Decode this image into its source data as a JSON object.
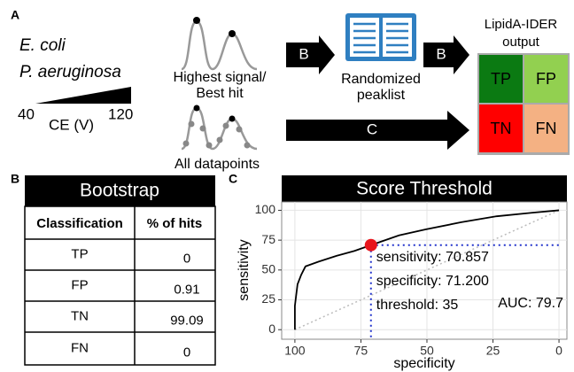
{
  "panel_a": {
    "label": "A",
    "organisms": [
      "E. coli",
      "P. aeruginosa"
    ],
    "ce": {
      "min": 40,
      "label": "CE (V)",
      "max": 120
    },
    "best_hit": [
      "Highest signal/",
      "Best hit"
    ],
    "all_points": "All datapoints",
    "arrows": [
      "B",
      "B",
      "C"
    ],
    "peaklist": [
      "Randomized",
      "peaklist"
    ],
    "output_title": [
      "LipidA-IDER",
      "output"
    ],
    "cells": [
      {
        "label": "TP",
        "color": "#0b7a12"
      },
      {
        "label": "FP",
        "color": "#92d050"
      },
      {
        "label": "TN",
        "color": "#ff0000"
      },
      {
        "label": "FN",
        "color": "#f4b183"
      }
    ]
  },
  "panel_b": {
    "label": "B",
    "title": "Bootstrap",
    "columns": [
      "Classification",
      "% of hits"
    ],
    "rows": [
      [
        "TP",
        0
      ],
      [
        "FP",
        0.91
      ],
      [
        "TN",
        99.09
      ],
      [
        "FN",
        0
      ]
    ]
  },
  "chart_data": {
    "type": "line",
    "panel_label": "C",
    "title": "Score Threshold",
    "x_label": "specificity",
    "y_label": "sensitivity",
    "xlim": [
      105,
      -3
    ],
    "ylim": [
      -8,
      107
    ],
    "xticks": [
      100,
      75,
      50,
      25,
      0
    ],
    "yticks": [
      0,
      25,
      50,
      75,
      100
    ],
    "grid": true,
    "series": [
      {
        "color": "#000000",
        "x": [
          100,
          100,
          99,
          97.6,
          96,
          91,
          84,
          77.4,
          71.2,
          60.6,
          50.5,
          37,
          23.6,
          10,
          0
        ],
        "values": [
          0,
          20,
          38,
          46,
          53,
          57,
          62,
          66,
          70.857,
          79,
          84,
          90,
          95,
          98,
          100
        ]
      },
      {
        "color": "#bbbbbb",
        "x": [
          100,
          0
        ],
        "values": [
          0,
          100
        ]
      }
    ],
    "point": {
      "x": 71.2,
      "y": 70.857,
      "color": "#e8141b",
      "guide_color": "#2233cc"
    },
    "annotations": [
      "sensitivity: 70.857",
      "specificity: 71.200",
      "threshold: 35",
      "AUC: 79.7"
    ]
  }
}
